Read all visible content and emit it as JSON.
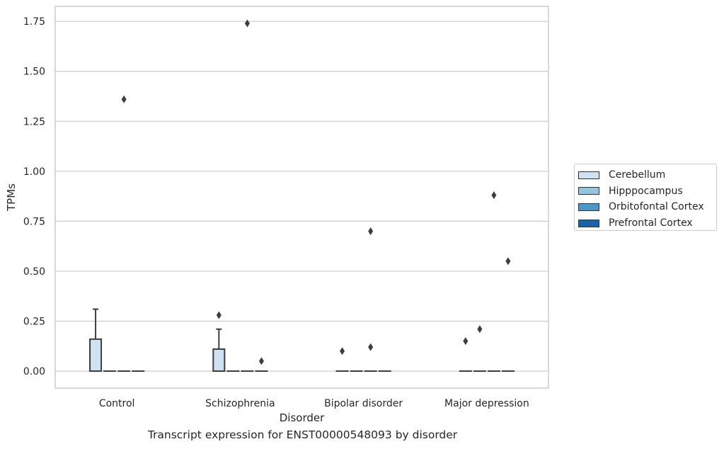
{
  "figure": {
    "caption": "Transcript expression for ENST00000548093 by disorder"
  },
  "chart_data": {
    "type": "box",
    "xlabel": "Disorder",
    "ylabel": "TPMs",
    "ylim": [
      -0.085,
      1.825
    ],
    "yticks": [
      0.0,
      0.25,
      0.5,
      0.75,
      1.0,
      1.25,
      1.5,
      1.75
    ],
    "ytick_labels": [
      "0.00",
      "0.25",
      "0.50",
      "0.75",
      "1.00",
      "1.25",
      "1.50",
      "1.75"
    ],
    "categories": [
      "Control",
      "Schizophrenia",
      "Bipolar disorder",
      "Major depression"
    ],
    "grid": "horizontal",
    "legend_position": "right",
    "series": [
      {
        "name": "Cerebellum",
        "color": "#d0e1f2",
        "boxes": [
          {
            "q1": 0.0,
            "median": 0.0,
            "q3": 0.16,
            "whisker_low": 0.0,
            "whisker_high": 0.31,
            "outliers": []
          },
          {
            "q1": 0.0,
            "median": 0.0,
            "q3": 0.11,
            "whisker_low": 0.0,
            "whisker_high": 0.21,
            "outliers": [
              0.28
            ]
          },
          {
            "q1": 0.0,
            "median": 0.0,
            "q3": 0.0,
            "whisker_low": 0.0,
            "whisker_high": 0.0,
            "outliers": [
              0.1
            ]
          },
          {
            "q1": 0.0,
            "median": 0.0,
            "q3": 0.0,
            "whisker_low": 0.0,
            "whisker_high": 0.0,
            "outliers": [
              0.15
            ]
          }
        ]
      },
      {
        "name": "Hipppocampus",
        "color": "#94c4df",
        "boxes": [
          {
            "q1": 0.0,
            "median": 0.0,
            "q3": 0.0,
            "whisker_low": 0.0,
            "whisker_high": 0.0,
            "outliers": []
          },
          {
            "q1": 0.0,
            "median": 0.0,
            "q3": 0.0,
            "whisker_low": 0.0,
            "whisker_high": 0.0,
            "outliers": []
          },
          {
            "q1": 0.0,
            "median": 0.0,
            "q3": 0.0,
            "whisker_low": 0.0,
            "whisker_high": 0.0,
            "outliers": []
          },
          {
            "q1": 0.0,
            "median": 0.0,
            "q3": 0.0,
            "whisker_low": 0.0,
            "whisker_high": 0.0,
            "outliers": [
              0.21
            ]
          }
        ]
      },
      {
        "name": "Orbitofontal Cortex",
        "color": "#4a98c9",
        "boxes": [
          {
            "q1": 0.0,
            "median": 0.0,
            "q3": 0.0,
            "whisker_low": 0.0,
            "whisker_high": 0.0,
            "outliers": [
              1.36
            ]
          },
          {
            "q1": 0.0,
            "median": 0.0,
            "q3": 0.0,
            "whisker_low": 0.0,
            "whisker_high": 0.0,
            "outliers": [
              1.74
            ]
          },
          {
            "q1": 0.0,
            "median": 0.0,
            "q3": 0.0,
            "whisker_low": 0.0,
            "whisker_high": 0.0,
            "outliers": [
              0.7,
              0.12
            ]
          },
          {
            "q1": 0.0,
            "median": 0.0,
            "q3": 0.0,
            "whisker_low": 0.0,
            "whisker_high": 0.0,
            "outliers": [
              0.88
            ]
          }
        ]
      },
      {
        "name": "Prefrontal Cortex",
        "color": "#1764ab",
        "boxes": [
          {
            "q1": 0.0,
            "median": 0.0,
            "q3": 0.0,
            "whisker_low": 0.0,
            "whisker_high": 0.0,
            "outliers": []
          },
          {
            "q1": 0.0,
            "median": 0.0,
            "q3": 0.0,
            "whisker_low": 0.0,
            "whisker_high": 0.0,
            "outliers": [
              0.05
            ]
          },
          {
            "q1": 0.0,
            "median": 0.0,
            "q3": 0.0,
            "whisker_low": 0.0,
            "whisker_high": 0.0,
            "outliers": []
          },
          {
            "q1": 0.0,
            "median": 0.0,
            "q3": 0.0,
            "whisker_low": 0.0,
            "whisker_high": 0.0,
            "outliers": [
              0.55
            ]
          }
        ]
      }
    ]
  }
}
